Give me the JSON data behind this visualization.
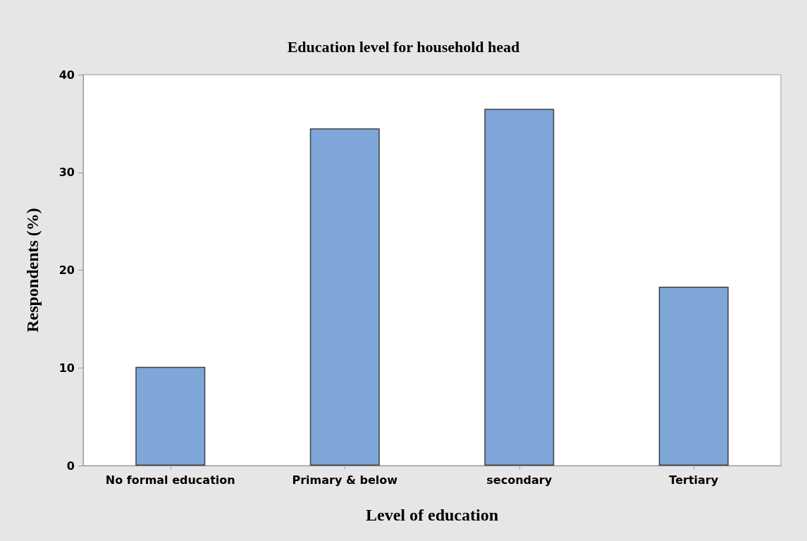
{
  "chart_data": {
    "type": "bar",
    "title": "Education level for household head",
    "xlabel": "Level of education",
    "ylabel": "Respondents (%)",
    "categories": [
      "No formal education",
      "Primary & below",
      "secondary",
      "Tertiary"
    ],
    "values": [
      10.1,
      34.5,
      36.5,
      18.3
    ],
    "color": "#7ea6d8",
    "ylim": [
      0,
      40
    ],
    "yticks": [
      0,
      10,
      20,
      30,
      40
    ],
    "grid": false
  }
}
